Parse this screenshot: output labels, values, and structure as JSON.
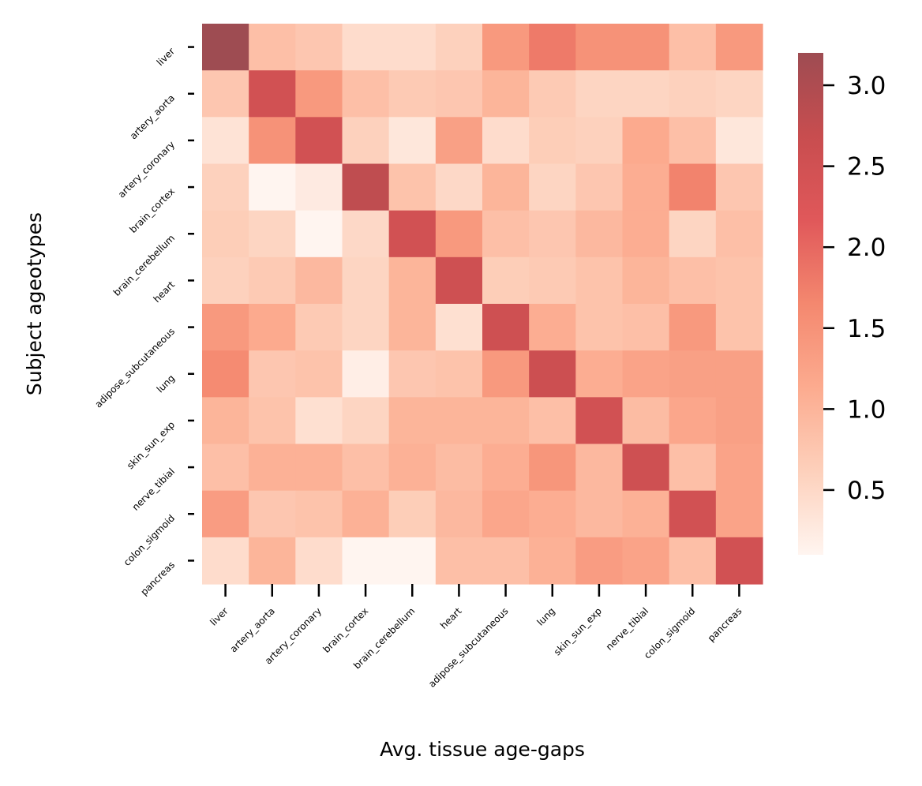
{
  "chart_data": {
    "type": "heatmap",
    "title": "",
    "xlabel": "Avg. tissue age-gaps",
    "ylabel": "Subject ageotypes",
    "x_categories": [
      "liver",
      "artery_aorta",
      "artery_coronary",
      "brain_cortex",
      "brain_cerebellum",
      "heart",
      "adipose_subcutaneous",
      "lung",
      "skin_sun_exp",
      "nerve_tibial",
      "colon_sigmoid",
      "pancreas"
    ],
    "y_categories": [
      "liver",
      "artery_aorta",
      "artery_coronary",
      "brain_cortex",
      "brain_cerebellum",
      "heart",
      "adipose_subcutaneous",
      "lung",
      "skin_sun_exp",
      "nerve_tibial",
      "colon_sigmoid",
      "pancreas"
    ],
    "values": [
      [
        3.2,
        0.85,
        0.75,
        0.45,
        0.45,
        0.6,
        1.4,
        1.8,
        1.5,
        1.5,
        0.85,
        1.4
      ],
      [
        0.75,
        2.5,
        1.4,
        0.85,
        0.7,
        0.75,
        1.0,
        0.7,
        0.55,
        0.55,
        0.6,
        0.55
      ],
      [
        0.35,
        1.5,
        2.5,
        0.6,
        0.3,
        1.3,
        0.45,
        0.65,
        0.6,
        1.15,
        0.85,
        0.3
      ],
      [
        0.6,
        0.1,
        0.25,
        2.8,
        0.8,
        0.5,
        1.0,
        0.55,
        0.75,
        1.1,
        1.7,
        0.75
      ],
      [
        0.65,
        0.55,
        0.1,
        0.5,
        2.5,
        1.4,
        0.85,
        0.75,
        0.95,
        1.1,
        0.55,
        0.85
      ],
      [
        0.6,
        0.7,
        0.95,
        0.55,
        1.0,
        2.55,
        0.65,
        0.7,
        0.8,
        1.0,
        0.85,
        0.8
      ],
      [
        1.4,
        1.15,
        0.7,
        0.55,
        1.0,
        0.4,
        2.55,
        1.1,
        0.8,
        0.85,
        1.4,
        0.8
      ],
      [
        1.6,
        0.75,
        0.8,
        0.2,
        0.75,
        0.8,
        1.4,
        2.6,
        1.1,
        1.25,
        1.3,
        1.3
      ],
      [
        1.0,
        0.8,
        0.4,
        0.55,
        1.0,
        1.0,
        1.0,
        0.85,
        2.5,
        0.9,
        1.2,
        1.3
      ],
      [
        0.85,
        1.05,
        1.05,
        0.85,
        1.05,
        0.9,
        1.1,
        1.45,
        0.95,
        2.55,
        0.85,
        1.25
      ],
      [
        1.35,
        0.75,
        0.8,
        1.05,
        0.65,
        0.95,
        1.2,
        1.1,
        0.95,
        1.05,
        2.5,
        1.25
      ],
      [
        0.45,
        1.0,
        0.45,
        0.05,
        0.05,
        0.85,
        0.85,
        1.05,
        1.35,
        1.25,
        0.85,
        2.5
      ]
    ],
    "colorbar": {
      "min": 0.1,
      "max": 3.2,
      "ticks": [
        0.5,
        1.0,
        1.5,
        2.0,
        2.5,
        3.0
      ],
      "tick_labels": [
        "0.5",
        "1.0",
        "1.5",
        "2.0",
        "2.5",
        "3.0"
      ],
      "colormap_stops": [
        "#fff5f0",
        "#fdd0bb",
        "#fcab8f",
        "#f4886f",
        "#e0585a",
        "#c84d4f",
        "#9e4c52"
      ]
    },
    "grid": false,
    "legend": "colorbar-right"
  }
}
